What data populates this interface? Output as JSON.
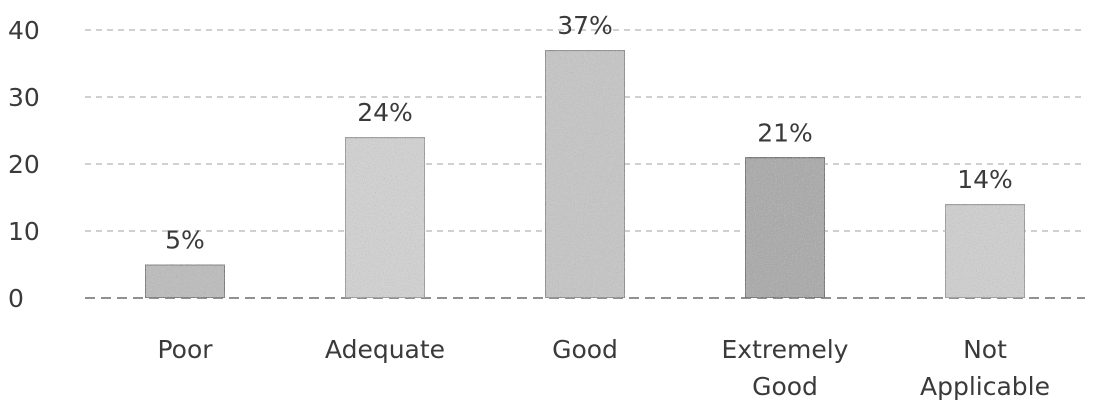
{
  "chart_data": {
    "type": "bar",
    "categories": [
      [
        "Poor"
      ],
      [
        "Adequate"
      ],
      [
        "Good"
      ],
      [
        "Extremely",
        "Good"
      ],
      [
        "Not",
        "Applicable"
      ]
    ],
    "values": [
      5,
      24,
      37,
      21,
      14
    ],
    "data_labels": [
      "5%",
      "24%",
      "37%",
      "21%",
      "14%"
    ],
    "ylim": [
      0,
      40
    ],
    "yticks": [
      "0",
      "10",
      "20",
      "30",
      "40"
    ],
    "grid": true,
    "bar_fills": [
      "#bcbcbc",
      "#d3d3d3",
      "#c6c6c6",
      "#a8a8a8",
      "#d0d0d0"
    ],
    "bar_strokes": [
      "#777777",
      "#9a9a9a",
      "#8c8c8c",
      "#6f6f6f",
      "#9a9a9a"
    ]
  }
}
